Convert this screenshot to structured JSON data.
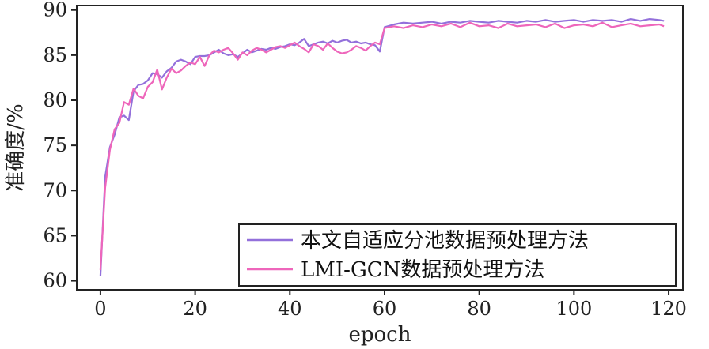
{
  "chart_data": {
    "type": "line",
    "xlabel": "epoch",
    "ylabel": "准确度/%",
    "xlim": [
      -5,
      123
    ],
    "ylim": [
      59,
      90.5
    ],
    "xticks": [
      0,
      20,
      40,
      60,
      80,
      100,
      120
    ],
    "yticks": [
      60,
      65,
      70,
      75,
      80,
      85,
      90
    ],
    "legend_position": "bottom-right",
    "series": [
      {
        "name": "本文自适应分池数据预处理方法",
        "color": "#9370DB",
        "x": [
          0,
          1,
          2,
          3,
          4,
          5,
          6,
          7,
          8,
          9,
          10,
          11,
          12,
          13,
          14,
          15,
          16,
          17,
          18,
          19,
          20,
          21,
          22,
          23,
          24,
          25,
          26,
          27,
          28,
          29,
          30,
          31,
          32,
          33,
          34,
          35,
          36,
          37,
          38,
          39,
          40,
          41,
          42,
          43,
          44,
          45,
          46,
          47,
          48,
          49,
          50,
          51,
          52,
          53,
          54,
          55,
          56,
          57,
          58,
          59,
          60,
          62,
          64,
          66,
          68,
          70,
          72,
          74,
          76,
          78,
          80,
          82,
          84,
          86,
          88,
          90,
          92,
          94,
          96,
          98,
          100,
          102,
          104,
          106,
          108,
          110,
          112,
          114,
          116,
          118,
          119
        ],
        "y": [
          60.5,
          71.5,
          74.8,
          76.2,
          78.1,
          78.3,
          77.8,
          81.0,
          81.7,
          81.8,
          82.2,
          83.0,
          82.9,
          82.5,
          83.2,
          83.6,
          84.3,
          84.5,
          84.3,
          84.0,
          84.8,
          84.9,
          84.9,
          85.0,
          85.3,
          85.6,
          85.2,
          85.0,
          85.1,
          84.8,
          85.2,
          85.6,
          85.3,
          85.5,
          85.7,
          85.6,
          85.8,
          85.7,
          85.9,
          86.0,
          86.2,
          86.1,
          86.4,
          86.8,
          86.0,
          86.2,
          86.4,
          86.5,
          86.3,
          86.6,
          86.4,
          86.6,
          86.7,
          86.4,
          86.5,
          86.3,
          86.4,
          86.2,
          86.1,
          85.4,
          88.1,
          88.4,
          88.6,
          88.5,
          88.6,
          88.7,
          88.5,
          88.7,
          88.6,
          88.8,
          88.7,
          88.6,
          88.8,
          88.7,
          88.6,
          88.8,
          88.7,
          88.9,
          88.7,
          88.8,
          88.9,
          88.7,
          88.9,
          88.8,
          88.9,
          88.7,
          89.0,
          88.8,
          89.0,
          88.9,
          88.8
        ]
      },
      {
        "name": "LMI-GCN数据预处理方法",
        "color": "#EE66BB",
        "x": [
          0,
          1,
          2,
          3,
          4,
          5,
          6,
          7,
          8,
          9,
          10,
          11,
          12,
          13,
          14,
          15,
          16,
          17,
          18,
          19,
          20,
          21,
          22,
          23,
          24,
          25,
          26,
          27,
          28,
          29,
          30,
          31,
          32,
          33,
          34,
          35,
          36,
          37,
          38,
          39,
          40,
          41,
          42,
          43,
          44,
          45,
          46,
          47,
          48,
          49,
          50,
          51,
          52,
          53,
          54,
          55,
          56,
          57,
          58,
          59,
          60,
          62,
          64,
          66,
          68,
          70,
          72,
          74,
          76,
          78,
          80,
          82,
          84,
          86,
          88,
          90,
          92,
          94,
          96,
          98,
          100,
          102,
          104,
          106,
          108,
          110,
          112,
          114,
          116,
          118,
          119
        ],
        "y": [
          61.2,
          70.3,
          74.5,
          76.8,
          77.5,
          79.8,
          79.5,
          81.3,
          80.5,
          80.2,
          81.5,
          82.0,
          83.4,
          81.2,
          82.5,
          83.5,
          83.0,
          83.3,
          83.8,
          84.2,
          84.0,
          84.8,
          83.8,
          85.0,
          85.5,
          85.3,
          85.6,
          85.8,
          85.2,
          84.5,
          85.3,
          85.0,
          85.5,
          85.8,
          85.6,
          85.3,
          85.6,
          85.9,
          86.0,
          85.8,
          86.1,
          86.4,
          86.0,
          85.7,
          85.3,
          86.2,
          86.0,
          85.6,
          86.3,
          85.8,
          85.4,
          85.2,
          85.3,
          85.6,
          86.0,
          85.8,
          85.5,
          86.0,
          86.4,
          86.2,
          88.0,
          88.2,
          88.0,
          88.3,
          88.1,
          88.4,
          88.2,
          88.5,
          88.1,
          88.6,
          88.2,
          88.3,
          88.0,
          88.5,
          88.2,
          88.3,
          88.4,
          88.1,
          88.5,
          88.0,
          88.3,
          88.4,
          88.2,
          88.6,
          88.1,
          88.3,
          88.5,
          88.2,
          88.3,
          88.4,
          88.2
        ]
      }
    ]
  }
}
